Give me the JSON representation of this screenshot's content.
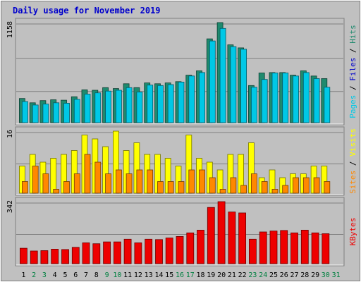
{
  "chart_data": {
    "type": "bar",
    "title": "Daily usage for November 2019",
    "categories": [
      "1",
      "2",
      "3",
      "4",
      "5",
      "6",
      "7",
      "8",
      "9",
      "10",
      "11",
      "12",
      "13",
      "14",
      "15",
      "16",
      "17",
      "18",
      "19",
      "20",
      "21",
      "22",
      "23",
      "24",
      "25",
      "26",
      "27",
      "28",
      "29",
      "30",
      "31"
    ],
    "weekend_days": [
      "2",
      "3",
      "9",
      "10",
      "16",
      "17",
      "23",
      "24",
      "30",
      "31"
    ],
    "colors": {
      "frame": "#c0c0c0",
      "plot_bg": "#c0c0c0",
      "hits": "#1f8a6e",
      "files": "#00c8e6",
      "visits": "#ffff00",
      "sites": "#ff8800",
      "kbytes": "#ee0000",
      "title": "#0000cc",
      "weekday_label": "#000000",
      "weekend_label": "#008040",
      "grid": "#808080"
    },
    "panels": [
      {
        "id": "top",
        "ymax_label": "1158",
        "ymax": 1158,
        "legend": [
          {
            "text": "Pages",
            "color": "#00c8e6"
          },
          {
            "text": " / ",
            "color": "#000000"
          },
          {
            "text": "Files",
            "color": "#0000cc"
          },
          {
            "text": " / ",
            "color": "#000000"
          },
          {
            "text": "Hits",
            "color": "#1f8a6e"
          }
        ],
        "series": [
          {
            "key": "hits",
            "values": [
              280,
              230,
              255,
              265,
              260,
              300,
              380,
              375,
              405,
              395,
              450,
              405,
              460,
              450,
              460,
              475,
              550,
              600,
              970,
              1158,
              900,
              865,
              430,
              575,
              580,
              580,
              550,
              600,
              540,
              510,
              0
            ]
          },
          {
            "key": "files",
            "values": [
              245,
              205,
              215,
              230,
              225,
              270,
              330,
              345,
              365,
              375,
              405,
              355,
              435,
              430,
              440,
              470,
              540,
              580,
              945,
              1090,
              880,
              850,
              410,
              500,
              575,
              575,
              540,
              580,
              510,
              410,
              0
            ]
          }
        ]
      },
      {
        "id": "middle",
        "ymax_label": "16",
        "ymax": 16,
        "legend": [
          {
            "text": "Sites",
            "color": "#ff8800"
          },
          {
            "text": " / ",
            "color": "#000000"
          },
          {
            "text": "Visits",
            "color": "#ffff00"
          }
        ],
        "series": [
          {
            "key": "visits",
            "values": [
              7,
              10,
              8,
              9,
              10,
              11,
              15,
              14,
              12,
              16,
              11,
              13,
              10,
              10,
              9,
              7,
              15,
              9,
              8,
              6,
              10,
              10,
              13,
              4,
              6,
              4,
              5,
              5,
              7,
              7,
              0
            ]
          },
          {
            "key": "sites",
            "values": [
              3,
              7,
              5,
              1,
              3,
              5,
              10,
              8,
              5,
              6,
              5,
              6,
              6,
              3,
              3,
              3,
              6,
              6,
              4,
              1,
              4,
              2,
              5,
              3,
              1,
              2,
              4,
              4,
              4,
              3,
              0
            ]
          }
        ]
      },
      {
        "id": "bottom",
        "ymax_label": "342",
        "ymax": 342,
        "legend": [
          {
            "text": "KBytes",
            "color": "#ee0000"
          }
        ],
        "series": [
          {
            "key": "kbytes",
            "values": [
              85,
              70,
              72,
              80,
              78,
              90,
              115,
              110,
              120,
              120,
              135,
              115,
              135,
              133,
              142,
              150,
              170,
              185,
              310,
              342,
              285,
              280,
              135,
              175,
              180,
              183,
              170,
              185,
              170,
              165,
              0
            ]
          }
        ]
      }
    ]
  }
}
